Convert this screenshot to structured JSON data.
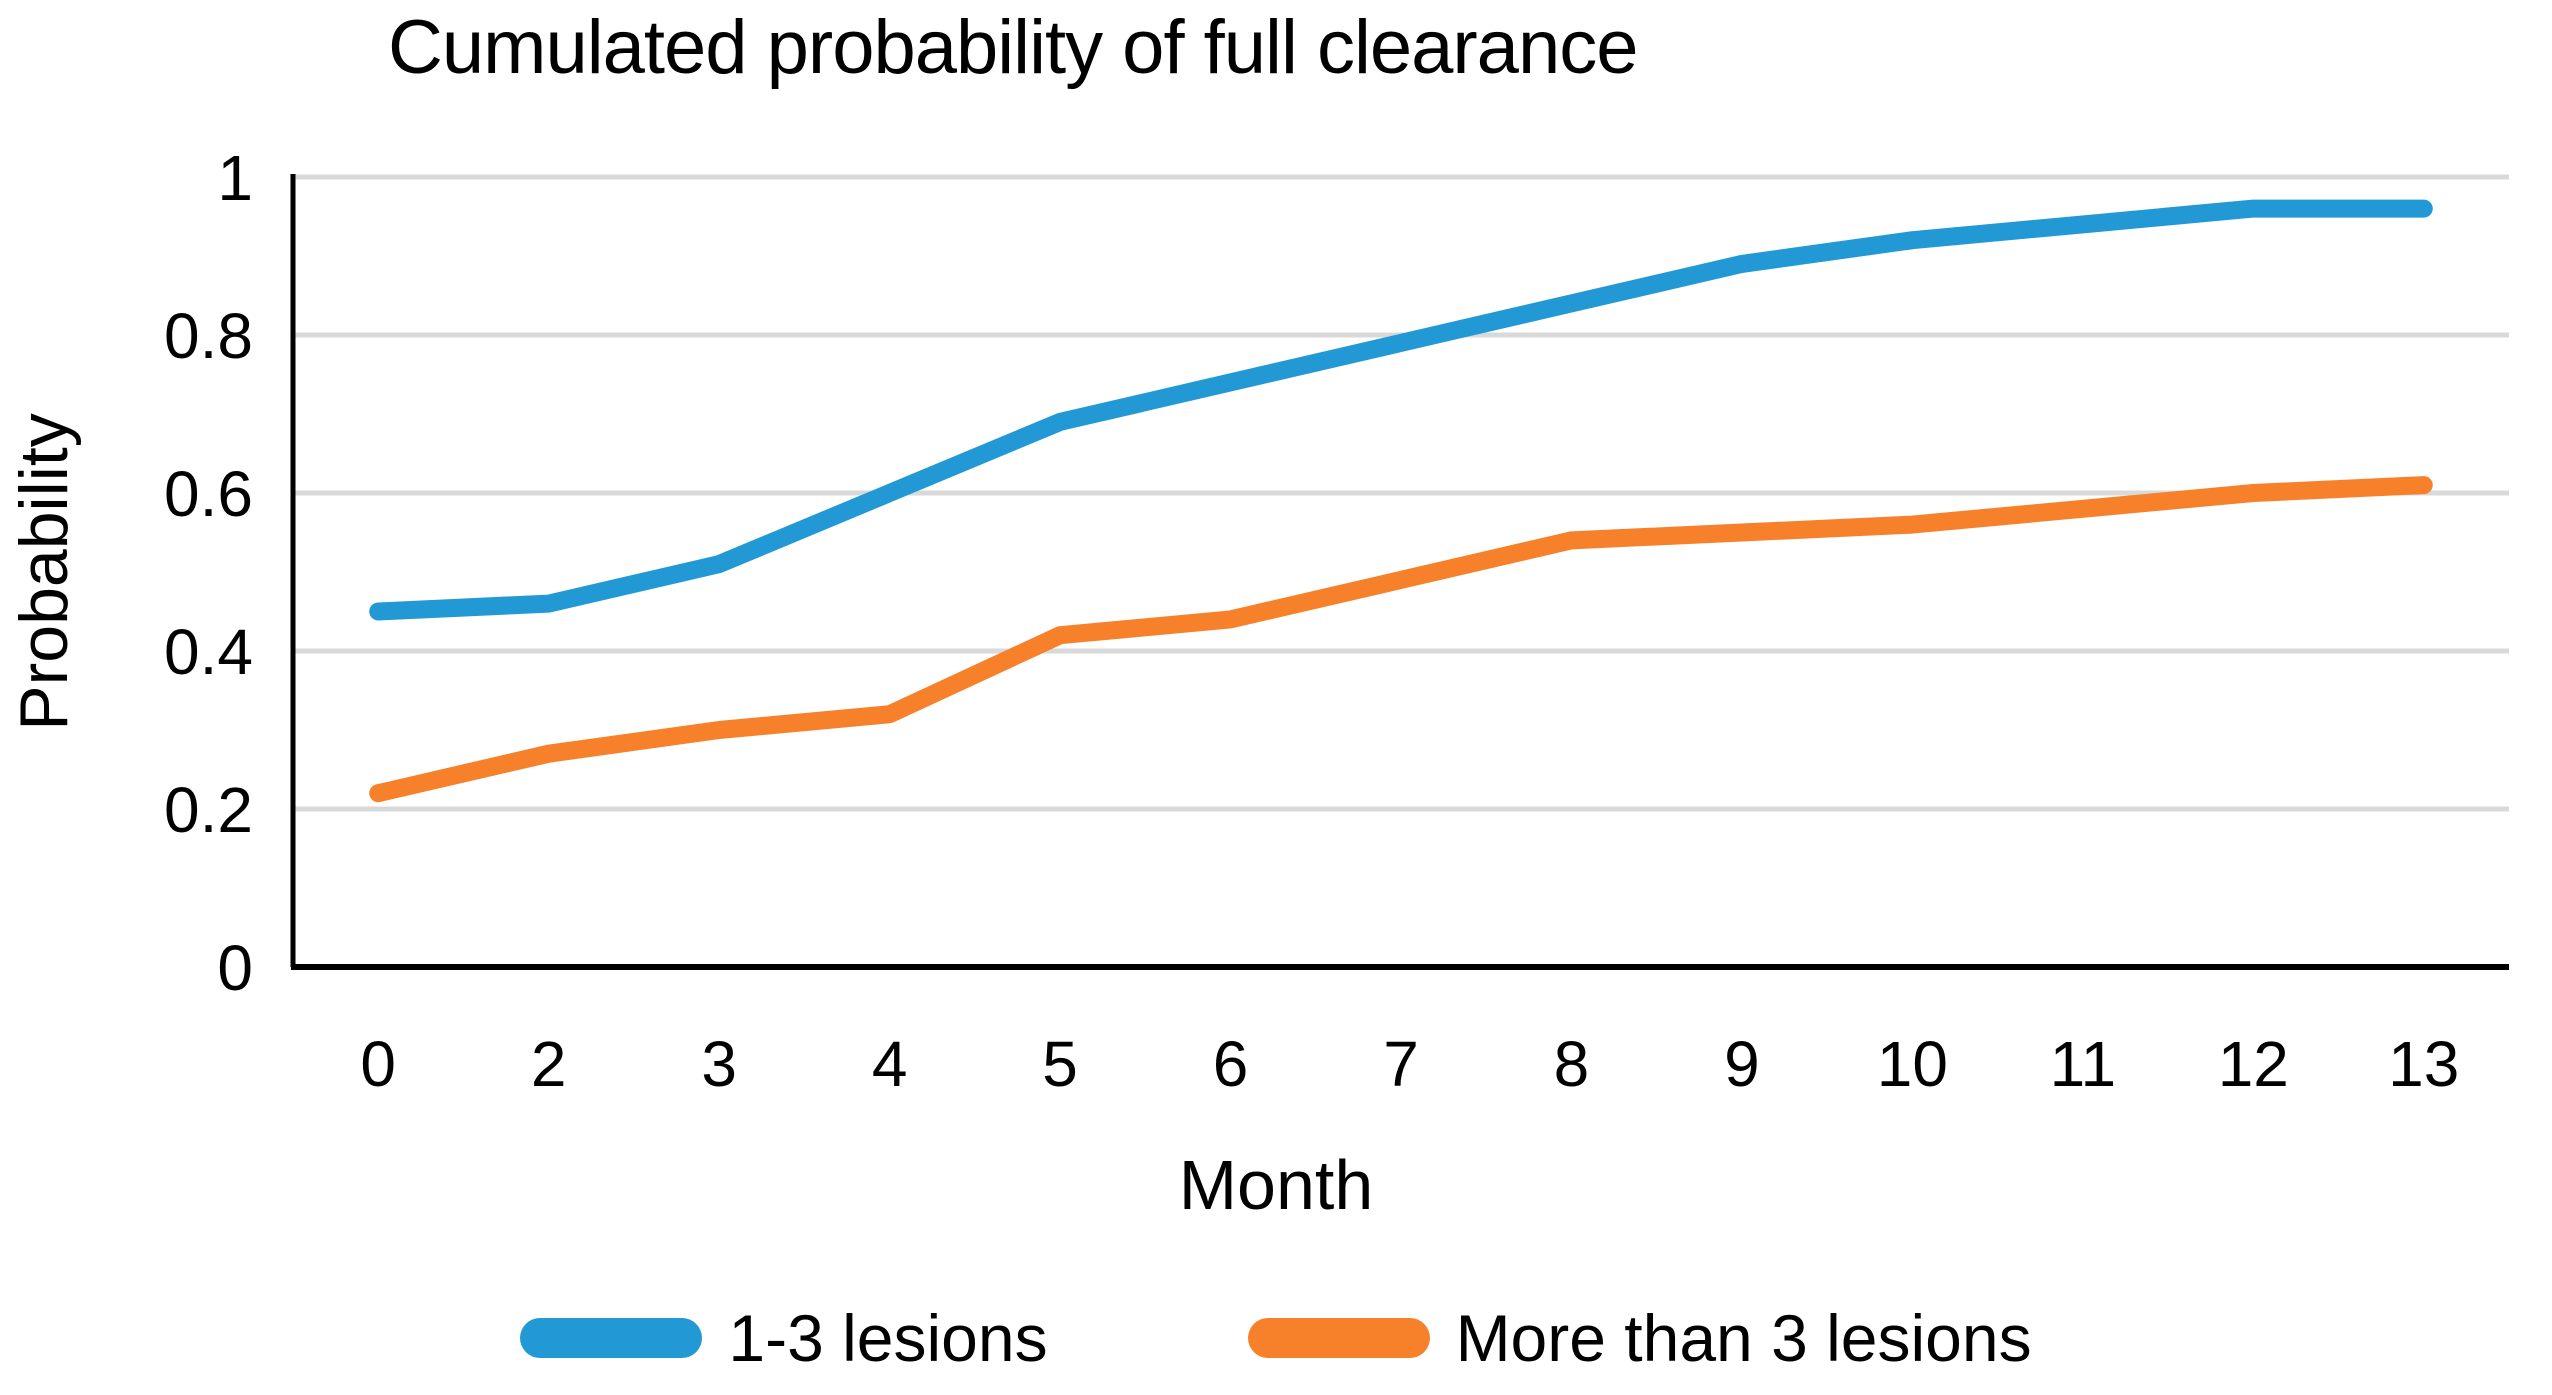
{
  "chart": {
    "title": "Cumulated probability of full clearance",
    "x_axis_title": "Month",
    "y_axis_title": "Probability",
    "background_color": "#FFFFFF",
    "gridline_color": "#D9D9D9",
    "axis_color": "#000000",
    "text_color": "#000000"
  },
  "chart_data": {
    "type": "line",
    "title": "Cumulated probability of full clearance",
    "xlabel": "Month",
    "ylabel": "Probability",
    "categories": [
      "0",
      "2",
      "3",
      "4",
      "5",
      "6",
      "7",
      "8",
      "9",
      "10",
      "11",
      "12",
      "13"
    ],
    "ylim": [
      0,
      1
    ],
    "y_ticks": [
      0,
      0.2,
      0.4,
      0.6,
      0.8,
      1
    ],
    "y_tick_labels": [
      "0",
      "0.2",
      "0.4",
      "0.6",
      "0.8",
      "1"
    ],
    "grid": "horizontal",
    "legend_position": "bottom",
    "series": [
      {
        "name": "1-3 lesions",
        "color": "#2299D4",
        "values": [
          0.45,
          0.46,
          0.51,
          0.6,
          0.69,
          0.74,
          0.79,
          0.84,
          0.89,
          0.92,
          0.94,
          0.96,
          0.96
        ]
      },
      {
        "name": "More than 3 lesions",
        "color": "#F6812A",
        "values": [
          0.22,
          0.27,
          0.3,
          0.32,
          0.42,
          0.44,
          0.49,
          0.54,
          0.55,
          0.56,
          0.58,
          0.6,
          0.61
        ]
      }
    ]
  }
}
